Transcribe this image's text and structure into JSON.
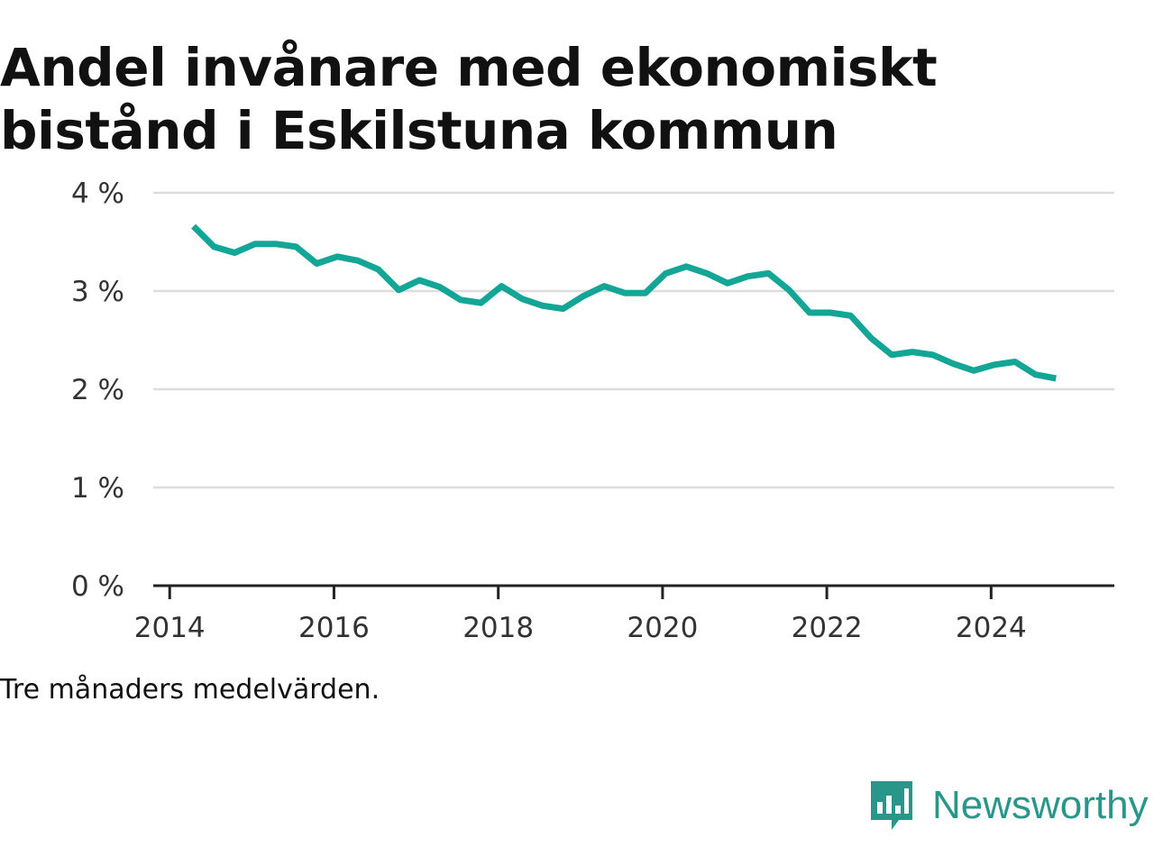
{
  "colors": {
    "line": "#13a596",
    "grid": "#dddddd",
    "axis": "#222222",
    "text": "#111111",
    "brand": "#29968a"
  },
  "caption": "Tre månaders medelvärden.",
  "brand": {
    "name": "Newsworthy",
    "icon": "newsworthy-logo-icon"
  },
  "chart_data": {
    "type": "line",
    "title": "Andel invånare med ekonomiskt bistånd i Eskilstuna kommun",
    "xlabel": "",
    "ylabel": "",
    "xlim": [
      2013.8,
      2025.5
    ],
    "ylim": [
      0,
      4
    ],
    "yticks": [
      0,
      1,
      2,
      3,
      4
    ],
    "ytick_labels": [
      "0 %",
      "1 %",
      "2 %",
      "3 %",
      "4 %"
    ],
    "xticks": [
      2014,
      2016,
      2018,
      2020,
      2022,
      2024
    ],
    "xtick_labels": [
      "2014",
      "2016",
      "2018",
      "2020",
      "2022",
      "2024"
    ],
    "grid": true,
    "series": [
      {
        "x": [
          2014.29,
          2014.54,
          2014.79,
          2015.04,
          2015.29,
          2015.54,
          2015.79,
          2016.04,
          2016.29,
          2016.54,
          2016.79,
          2017.04,
          2017.29,
          2017.54,
          2017.79,
          2018.04,
          2018.29,
          2018.54,
          2018.79,
          2019.04,
          2019.29,
          2019.54,
          2019.79,
          2020.04,
          2020.29,
          2020.54,
          2020.79,
          2021.04,
          2021.29,
          2021.54,
          2021.79,
          2022.04,
          2022.29,
          2022.54,
          2022.79,
          2023.04,
          2023.29,
          2023.54,
          2023.79,
          2024.04,
          2024.29,
          2024.54,
          2024.79
        ],
        "values": [
          3.66,
          3.45,
          3.39,
          3.48,
          3.48,
          3.45,
          3.28,
          3.35,
          3.31,
          3.22,
          3.01,
          3.11,
          3.04,
          2.91,
          2.88,
          3.05,
          2.92,
          2.85,
          2.82,
          2.95,
          3.05,
          2.98,
          2.98,
          3.18,
          3.25,
          3.18,
          3.08,
          3.15,
          3.18,
          3.01,
          2.78,
          2.78,
          2.75,
          2.52,
          2.35,
          2.38,
          2.35,
          2.26,
          2.19,
          2.25,
          2.28,
          2.15,
          2.11
        ]
      }
    ]
  }
}
